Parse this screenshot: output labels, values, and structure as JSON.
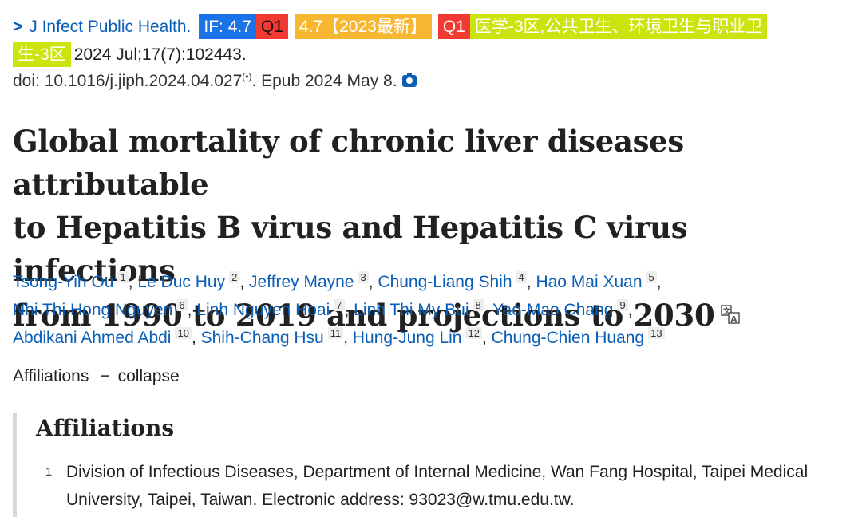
{
  "citation": {
    "journal": "J Infect Public Health.",
    "badges": {
      "impact_factor": "IF: 4.7",
      "quartile": "Q1",
      "latest_if": "4.7【2023最新】",
      "quartile2": "Q1",
      "zone_line1": "医学-3区,公共卫生、环境卫生与职业卫",
      "zone_line2": "生-3区"
    },
    "date": "2024 Jul;17(7):102443.",
    "doi": "doi: 10.1016/j.jiph.2024.04.027",
    "epub": ". Epub 2024 May 8."
  },
  "title": {
    "line1": "Global mortality of chronic liver diseases attributable",
    "line2": "to Hepatitis B virus and Hepatitis C virus infections",
    "line3": "from 1990 to 2019 and projections to 2030"
  },
  "authors": [
    {
      "name": "Tsong-Yih Ou",
      "aff": "1"
    },
    {
      "name": "Le Duc Huy",
      "aff": "2"
    },
    {
      "name": "Jeffrey Mayne",
      "aff": "3"
    },
    {
      "name": "Chung-Liang Shih",
      "aff": "4"
    },
    {
      "name": "Hao Mai Xuan",
      "aff": "5"
    },
    {
      "name": "Nhi Thi Hong Nguyen",
      "aff": "6"
    },
    {
      "name": "Linh Nguyen Hoai",
      "aff": "7"
    },
    {
      "name": "Linh Thi My Bui",
      "aff": "8"
    },
    {
      "name": "Yao-Mao Chang",
      "aff": "9"
    },
    {
      "name": "Abdikani Ahmed Abdi",
      "aff": "10"
    },
    {
      "name": "Shih-Chang Hsu",
      "aff": "11"
    },
    {
      "name": "Hung-Jung Lin",
      "aff": "12"
    },
    {
      "name": "Chung-Chien Huang",
      "aff": "13"
    }
  ],
  "affiliations_toggle": {
    "label": "Affiliations",
    "dash": "−",
    "action": "collapse"
  },
  "affiliations": {
    "heading": "Affiliations",
    "items": [
      {
        "num": "1",
        "text": "Division of Infectious Diseases, Department of Internal Medicine, Wan Fang Hospital, Taipei Medical University, Taipei, Taiwan. Electronic address: 93023@w.tmu.edu.tw."
      }
    ]
  },
  "icons": {
    "chevron": "chevron-right-icon",
    "external": "external-link-icon",
    "camera": "camera-icon",
    "translate": "translate-icon"
  },
  "colors": {
    "link": "#0b5eb8",
    "if_badge": "#1a73e8",
    "q1_badge": "#f33a32",
    "if_year_badge": "#f7b731",
    "zone_badge": "#cce40d"
  }
}
